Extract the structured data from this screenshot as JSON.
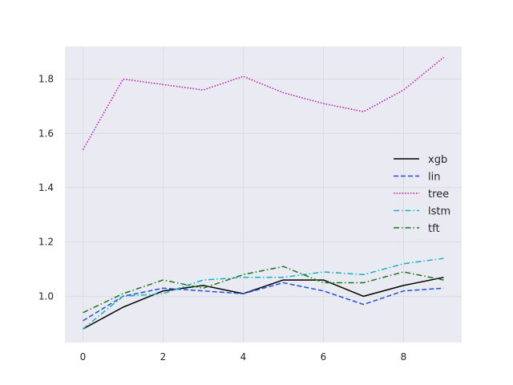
{
  "chart_data": {
    "type": "line",
    "title": "",
    "xlabel": "",
    "ylabel": "",
    "x": [
      0,
      1,
      2,
      3,
      4,
      5,
      6,
      7,
      8,
      9
    ],
    "xlim": [
      -0.45,
      9.45
    ],
    "ylim": [
      0.83,
      1.92
    ],
    "xticks": [
      0,
      2,
      4,
      6,
      8
    ],
    "yticks": [
      1.0,
      1.2,
      1.4,
      1.6,
      1.8
    ],
    "ytick_labels": [
      "1.0",
      "1.2",
      "1.4",
      "1.6",
      "1.8"
    ],
    "grid": true,
    "legend_position": "center-right",
    "background_color": "#eaeaf2",
    "series": [
      {
        "name": "xgb",
        "color": "#000000",
        "dash": "solid",
        "values": [
          0.88,
          0.96,
          1.02,
          1.04,
          1.01,
          1.06,
          1.06,
          1.0,
          1.04,
          1.07
        ]
      },
      {
        "name": "lin",
        "color": "#1f4fe0",
        "dash": "dashed",
        "values": [
          0.91,
          1.0,
          1.03,
          1.02,
          1.01,
          1.05,
          1.02,
          0.97,
          1.02,
          1.03
        ]
      },
      {
        "name": "tree",
        "color": "#c012c0",
        "dash": "dotted",
        "values": [
          1.54,
          1.8,
          1.78,
          1.76,
          1.81,
          1.75,
          1.71,
          1.68,
          1.76,
          1.88
        ]
      },
      {
        "name": "lstm",
        "color": "#17b0c4",
        "dash": "dashdot",
        "values": [
          0.88,
          1.0,
          1.01,
          1.06,
          1.07,
          1.07,
          1.09,
          1.08,
          1.12,
          1.14
        ]
      },
      {
        "name": "tft",
        "color": "#137d13",
        "dash": "dashdot",
        "values": [
          0.94,
          1.01,
          1.06,
          1.03,
          1.08,
          1.11,
          1.05,
          1.05,
          1.09,
          1.06
        ]
      }
    ]
  }
}
